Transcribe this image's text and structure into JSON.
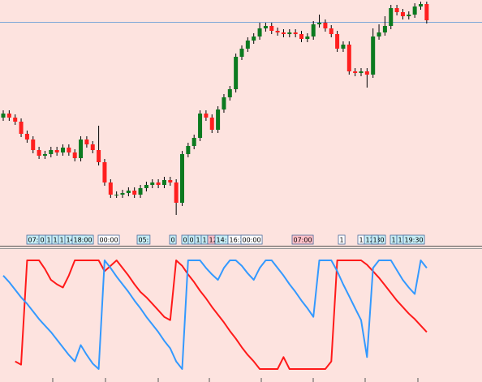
{
  "chart_data": [
    {
      "type": "candlestick",
      "open": [
        135,
        140,
        135,
        130,
        115,
        108,
        95,
        88,
        90,
        95,
        92,
        98,
        92,
        85,
        108,
        102,
        95,
        80,
        55,
        40,
        40,
        42,
        45,
        40,
        48,
        52,
        55,
        52,
        58,
        55,
        30,
        90,
        100,
        110,
        140,
        135,
        120,
        145,
        160,
        170,
        210,
        220,
        230,
        235,
        245,
        248,
        242,
        240,
        238,
        240,
        238,
        232,
        235,
        250,
        252,
        245,
        238,
        220,
        225,
        192,
        190,
        192,
        188,
        235,
        240,
        248,
        270,
        265,
        260,
        262,
        272,
        275
      ],
      "high": [
        144,
        144,
        139,
        134,
        119,
        112,
        99,
        94,
        99,
        99,
        102,
        102,
        96,
        112,
        112,
        106,
        125,
        84,
        59,
        44,
        46,
        49,
        49,
        52,
        56,
        59,
        59,
        62,
        62,
        59,
        94,
        104,
        114,
        144,
        144,
        139,
        149,
        164,
        174,
        214,
        224,
        234,
        239,
        252,
        252,
        252,
        246,
        244,
        244,
        244,
        242,
        239,
        254,
        262,
        256,
        249,
        242,
        229,
        229,
        196,
        196,
        196,
        245,
        250,
        260,
        274,
        274,
        269,
        266,
        276,
        278,
        278
      ],
      "low": [
        131,
        131,
        126,
        111,
        104,
        91,
        84,
        84,
        86,
        88,
        88,
        88,
        81,
        81,
        98,
        91,
        76,
        51,
        36,
        36,
        36,
        38,
        36,
        36,
        44,
        48,
        48,
        48,
        51,
        15,
        26,
        86,
        96,
        106,
        131,
        116,
        116,
        141,
        156,
        166,
        206,
        216,
        226,
        231,
        241,
        238,
        236,
        234,
        234,
        234,
        228,
        228,
        231,
        246,
        241,
        234,
        216,
        216,
        188,
        186,
        186,
        172,
        184,
        231,
        236,
        244,
        261,
        256,
        256,
        258,
        268,
        251
      ],
      "close": [
        140,
        135,
        130,
        115,
        108,
        95,
        88,
        90,
        95,
        92,
        98,
        92,
        85,
        108,
        102,
        95,
        80,
        55,
        40,
        40,
        42,
        45,
        40,
        48,
        52,
        55,
        52,
        58,
        55,
        30,
        90,
        100,
        110,
        140,
        135,
        120,
        145,
        160,
        170,
        210,
        220,
        230,
        235,
        245,
        248,
        242,
        240,
        238,
        240,
        238,
        232,
        235,
        250,
        252,
        245,
        238,
        220,
        225,
        192,
        190,
        192,
        188,
        235,
        240,
        248,
        270,
        265,
        260,
        262,
        272,
        275,
        255
      ],
      "ylim": [
        -5,
        280
      ],
      "hline": 253,
      "up_color": "#0b7a1f",
      "down_color": "#ff1f1f",
      "hline_color": "#7fa8d8",
      "time_labels": [
        {
          "label": "07:",
          "color": "#c6eef6"
        },
        {
          "label": "0",
          "color": "#c6eef6"
        },
        {
          "label": "1",
          "color": "#c6eef6"
        },
        {
          "label": "1",
          "color": "#c6eef6"
        },
        {
          "label": "1",
          "color": "#c6eef6"
        },
        {
          "label": "14:30",
          "color": "#c6eef6"
        },
        {
          "label": "18:00",
          "color": "#c6eef6"
        },
        {
          "label": "00:00",
          "color": "#ffffff"
        },
        {
          "label": "05:",
          "color": "#c6eef6"
        },
        {
          "label": "0",
          "color": "#c6eef6"
        },
        {
          "label": "0",
          "color": "#c6eef6"
        },
        {
          "label": "0",
          "color": "#c6eef6"
        },
        {
          "label": "1",
          "color": "#c6eef6"
        },
        {
          "label": "1",
          "color": "#c6eef6"
        },
        {
          "label": "12:",
          "color": "#ffc0c8"
        },
        {
          "label": "14:",
          "color": "#c6eef6"
        },
        {
          "label": "16:30",
          "color": "#ffffff"
        },
        {
          "label": "00:00",
          "color": "#ffffff"
        },
        {
          "label": "07:00",
          "color": "#ffc0c8"
        },
        {
          "label": "1",
          "color": "#ffffff"
        },
        {
          "label": "1",
          "color": "#ffffff"
        },
        {
          "label": "12:30",
          "color": "#c6eef6"
        },
        {
          "label": "1",
          "color": "#c6eef6"
        },
        {
          "label": "1",
          "color": "#c6eef6"
        },
        {
          "label": "17:",
          "color": "#c6eef6"
        },
        {
          "label": "19:30",
          "color": "#c6eef6"
        }
      ]
    },
    {
      "type": "line",
      "ylim": [
        0,
        100
      ],
      "series": [
        {
          "color": "#ff1a1a",
          "values": [
            null,
            null,
            7,
            4,
            100,
            100,
            100,
            92,
            82,
            78,
            75,
            86,
            100,
            100,
            100,
            100,
            100,
            90,
            95,
            100,
            93,
            86,
            78,
            71,
            66,
            60,
            54,
            48,
            45,
            100,
            95,
            87,
            80,
            72,
            65,
            57,
            50,
            43,
            35,
            28,
            20,
            13,
            7,
            0,
            0,
            0,
            0,
            11,
            0,
            0,
            0,
            0,
            0,
            0,
            0,
            7,
            100,
            100,
            100,
            100,
            100,
            96,
            90,
            84,
            77,
            70,
            63,
            57,
            51,
            46,
            40,
            34
          ]
        },
        {
          "color": "#3399ff",
          "values": [
            86,
            80,
            73,
            66,
            60,
            53,
            46,
            40,
            34,
            27,
            20,
            13,
            7,
            22,
            13,
            5,
            0,
            100,
            93,
            85,
            78,
            71,
            63,
            56,
            48,
            41,
            34,
            26,
            19,
            7,
            0,
            100,
            100,
            100,
            93,
            87,
            82,
            93,
            100,
            100,
            95,
            88,
            82,
            93,
            100,
            100,
            93,
            86,
            78,
            71,
            63,
            56,
            48,
            100,
            100,
            100,
            90,
            78,
            67,
            56,
            45,
            11,
            93,
            100,
            100,
            100,
            91,
            82,
            75,
            69,
            100,
            93
          ]
        }
      ]
    }
  ]
}
